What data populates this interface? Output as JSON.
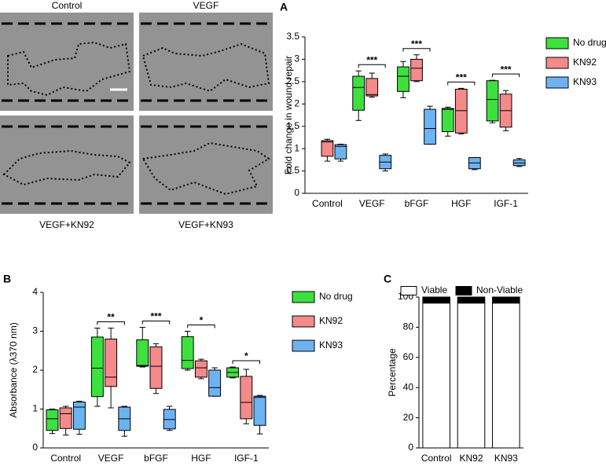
{
  "micrographs": {
    "labels": [
      "Control",
      "VEGF",
      "VEGF+KN92",
      "VEGF+KN93"
    ]
  },
  "chart_data": [
    {
      "type": "box",
      "panel": "A",
      "ylabel": "Fold change in wound repair",
      "categories": [
        "Control",
        "VEGF",
        "bFGF",
        "HGF",
        "IGF-1"
      ],
      "ylim": [
        0,
        3.5
      ],
      "yticks": [
        0,
        0.5,
        1,
        1.5,
        2,
        2.5,
        3,
        3.5
      ],
      "legend": "right",
      "series": [
        {
          "name": "No drug",
          "color": "#3ee03e",
          "values": [
            null,
            {
              "min": 1.63,
              "q1": 1.86,
              "median": 2.37,
              "q3": 2.62,
              "max": 2.74
            },
            {
              "min": 2.14,
              "q1": 2.28,
              "median": 2.62,
              "q3": 2.83,
              "max": 2.95
            },
            {
              "min": 1.28,
              "q1": 1.38,
              "median": 1.88,
              "q3": 1.9,
              "max": 1.93
            },
            {
              "min": 1.58,
              "q1": 1.62,
              "median": 2.1,
              "q3": 2.52,
              "max": 2.53
            }
          ]
        },
        {
          "name": "KN92",
          "color": "#f48a8a",
          "values": [
            {
              "min": 0.72,
              "q1": 0.83,
              "median": 1.15,
              "q3": 1.18,
              "max": 1.21
            },
            {
              "min": 2.15,
              "q1": 2.18,
              "median": 2.21,
              "q3": 2.57,
              "max": 2.69
            },
            {
              "min": 2.5,
              "q1": 2.52,
              "median": 2.8,
              "q3": 3.0,
              "max": 3.1
            },
            {
              "min": 1.33,
              "q1": 1.35,
              "median": 1.85,
              "q3": 2.33,
              "max": 2.35
            },
            {
              "min": 1.4,
              "q1": 1.48,
              "median": 1.85,
              "q3": 2.22,
              "max": 2.3
            }
          ]
        },
        {
          "name": "KN93",
          "color": "#6db3f2",
          "values": [
            {
              "min": 0.72,
              "q1": 0.77,
              "median": 1.05,
              "q3": 1.09,
              "max": 1.1
            },
            {
              "min": 0.5,
              "q1": 0.55,
              "median": 0.7,
              "q3": 0.85,
              "max": 0.88
            },
            {
              "min": 1.1,
              "q1": 1.1,
              "median": 1.45,
              "q3": 1.88,
              "max": 1.95
            },
            {
              "min": 0.53,
              "q1": 0.55,
              "median": 0.68,
              "q3": 0.8,
              "max": 0.8
            },
            {
              "min": 0.6,
              "q1": 0.62,
              "median": 0.68,
              "q3": 0.75,
              "max": 0.78
            }
          ]
        }
      ],
      "annotations": [
        {
          "label": "***",
          "category": "VEGF"
        },
        {
          "label": "***",
          "category": "bFGF"
        },
        {
          "label": "***",
          "category": "HGF"
        },
        {
          "label": "***",
          "category": "IGF-1"
        }
      ]
    },
    {
      "type": "box",
      "panel": "B",
      "ylabel": "Absorbance (λ370 nm)",
      "categories": [
        "Control",
        "VEGF",
        "bFGF",
        "HGF",
        "IGF-1"
      ],
      "ylim": [
        0,
        4
      ],
      "yticks": [
        0,
        1,
        2,
        3,
        4
      ],
      "legend": "right",
      "series": [
        {
          "name": "No drug",
          "color": "#3ee03e",
          "values": [
            {
              "min": 0.37,
              "q1": 0.45,
              "median": 0.75,
              "q3": 0.98,
              "max": 1.0
            },
            {
              "min": 1.07,
              "q1": 1.32,
              "median": 2.05,
              "q3": 2.85,
              "max": 3.08
            },
            {
              "min": 2.08,
              "q1": 2.1,
              "median": 2.12,
              "q3": 2.78,
              "max": 3.1
            },
            {
              "min": 2.0,
              "q1": 2.04,
              "median": 2.25,
              "q3": 2.86,
              "max": 3.0
            },
            {
              "min": 1.8,
              "q1": 1.82,
              "median": 1.94,
              "q3": 2.06,
              "max": 2.08
            }
          ]
        },
        {
          "name": "KN92",
          "color": "#f48a8a",
          "values": [
            {
              "min": 0.33,
              "q1": 0.5,
              "median": 0.88,
              "q3": 1.03,
              "max": 1.07
            },
            {
              "min": 1.03,
              "q1": 1.58,
              "median": 1.82,
              "q3": 2.8,
              "max": 3.08
            },
            {
              "min": 1.4,
              "q1": 1.53,
              "median": 2.1,
              "q3": 2.6,
              "max": 2.68
            },
            {
              "min": 1.78,
              "q1": 1.82,
              "median": 2.06,
              "q3": 2.24,
              "max": 2.28
            },
            {
              "min": 0.62,
              "q1": 0.75,
              "median": 1.17,
              "q3": 1.84,
              "max": 2.02
            }
          ]
        },
        {
          "name": "KN93",
          "color": "#6db3f2",
          "values": [
            {
              "min": 0.35,
              "q1": 0.48,
              "median": 1.05,
              "q3": 1.18,
              "max": 1.2
            },
            {
              "min": 0.3,
              "q1": 0.45,
              "median": 0.75,
              "q3": 1.05,
              "max": 1.07
            },
            {
              "min": 0.45,
              "q1": 0.49,
              "median": 0.73,
              "q3": 0.99,
              "max": 1.07
            },
            {
              "min": 1.33,
              "q1": 1.33,
              "median": 1.55,
              "q3": 2.0,
              "max": 2.06
            },
            {
              "min": 0.36,
              "q1": 0.58,
              "median": 1.3,
              "q3": 1.33,
              "max": 1.35
            }
          ]
        }
      ],
      "annotations": [
        {
          "label": "**",
          "category": "VEGF"
        },
        {
          "label": "***",
          "category": "bFGF"
        },
        {
          "label": "*",
          "category": "HGF"
        },
        {
          "label": "*",
          "category": "IGF-1"
        }
      ]
    },
    {
      "type": "stacked_bar",
      "panel": "C",
      "ylabel": "Percentage",
      "categories": [
        "Control",
        "KN92",
        "KN93"
      ],
      "ylim": [
        0,
        100
      ],
      "yticks": [
        0,
        20,
        40,
        60,
        80,
        100
      ],
      "legend": "top",
      "series": [
        {
          "name": "Viable",
          "color": "#ffffff",
          "values": [
            96,
            96,
            96
          ]
        },
        {
          "name": "Non-Viable",
          "color": "#000000",
          "values": [
            4,
            4,
            4
          ]
        }
      ]
    }
  ]
}
